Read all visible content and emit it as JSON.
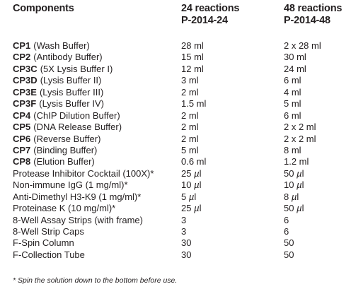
{
  "header": {
    "col_components": "Components",
    "col_24": "24 reactions",
    "col_24_sku": "P-2014-24",
    "col_48": "48 reactions",
    "col_48_sku": "P-2014-48"
  },
  "rows": [
    {
      "code": "CP1",
      "desc": "(Wash Buffer)",
      "qty24": "28 ml",
      "qty48": "2 x 28 ml"
    },
    {
      "code": "CP2",
      "desc": "(Antibody Buffer)",
      "qty24": "15 ml",
      "qty48": "30 ml"
    },
    {
      "code": "CP3C",
      "desc": "(5X Lysis Buffer I)",
      "qty24": "12 ml",
      "qty48": "24 ml"
    },
    {
      "code": "CP3D",
      "desc": "(Lysis Buffer II)",
      "qty24": "3 ml",
      "qty48": "6 ml"
    },
    {
      "code": "CP3E",
      "desc": "(Lysis Buffer III)",
      "qty24": "2 ml",
      "qty48": "4 ml"
    },
    {
      "code": "CP3F",
      "desc": "(Lysis Buffer IV)",
      "qty24": "1.5 ml",
      "qty48": "5 ml"
    },
    {
      "code": "CP4",
      "desc": "(ChIP Dilution Buffer)",
      "qty24": "2 ml",
      "qty48": "6 ml"
    },
    {
      "code": "CP5",
      "desc": "(DNA Release Buffer)",
      "qty24": "2 ml",
      "qty48": "2 x 2 ml"
    },
    {
      "code": "CP6",
      "desc": "(Reverse Buffer)",
      "qty24": "2 ml",
      "qty48": "2 x 2 ml"
    },
    {
      "code": "CP7",
      "desc": "(Binding Buffer)",
      "qty24": "5 ml",
      "qty48": "8 ml"
    },
    {
      "code": "CP8",
      "desc": "(Elution Buffer)",
      "qty24": "0.6 ml",
      "qty48": "1.2 ml"
    },
    {
      "code": "",
      "desc": "Protease Inhibitor Cocktail (100X)*",
      "qty24": "25 µl",
      "qty48": "50 µl"
    },
    {
      "code": "",
      "desc": "Non-immune IgG (1 mg/ml)*",
      "qty24": "10 µl",
      "qty48": "10 µl"
    },
    {
      "code": "",
      "desc": "Anti-Dimethyl H3-K9 (1 mg/ml)*",
      "qty24": "5 µl",
      "qty48": "8 µl"
    },
    {
      "code": "",
      "desc": "Proteinase K (10 mg/ml)*",
      "qty24": "25 µl",
      "qty48": "50 µl"
    },
    {
      "code": "",
      "desc": "8-Well Assay Strips (with frame)",
      "qty24": "3",
      "qty48": "6"
    },
    {
      "code": "",
      "desc": "8-Well Strip Caps",
      "qty24": "3",
      "qty48": "6"
    },
    {
      "code": "",
      "desc": "F-Spin Column",
      "qty24": "30",
      "qty48": "50"
    },
    {
      "code": "",
      "desc": "F-Collection Tube",
      "qty24": "30",
      "qty48": "50"
    }
  ],
  "footnote": "* Spin the solution down to the bottom before use."
}
